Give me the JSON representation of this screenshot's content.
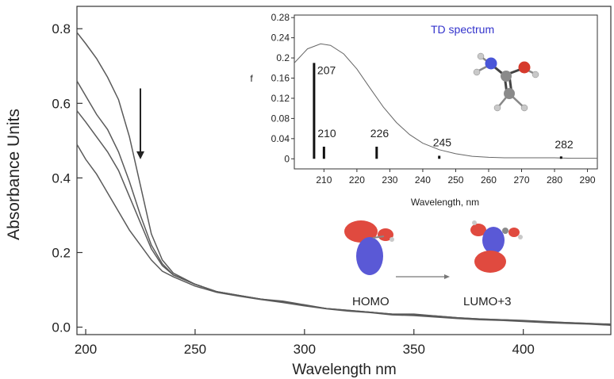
{
  "chart_data": [
    {
      "type": "line",
      "xlabel": "Wavelength nm",
      "ylabel": "Absorbance Units",
      "xlim": [
        196,
        440
      ],
      "ylim": [
        -0.02,
        0.86
      ],
      "x_ticks": [
        200,
        250,
        300,
        350,
        400
      ],
      "y_ticks": [
        0.0,
        0.2,
        0.4,
        0.6,
        0.8
      ],
      "x_tick_labels": [
        "200",
        "250",
        "300",
        "350",
        "400"
      ],
      "y_tick_labels": [
        "0.0",
        "0.2",
        "0.4",
        "0.6",
        "0.8"
      ],
      "arrow_annotation": {
        "x": 225,
        "y_from": 0.64,
        "y_to": 0.45,
        "direction": "down"
      },
      "series": [
        {
          "x": [
            196,
            200,
            205,
            210,
            215,
            220,
            225,
            230,
            235,
            240,
            250,
            260,
            270,
            280,
            290,
            300,
            310,
            320,
            330,
            340,
            350,
            360,
            370,
            380,
            390,
            400,
            410,
            420,
            430,
            440
          ],
          "y": [
            0.79,
            0.76,
            0.72,
            0.67,
            0.61,
            0.51,
            0.38,
            0.25,
            0.18,
            0.145,
            0.115,
            0.095,
            0.085,
            0.075,
            0.07,
            0.06,
            0.05,
            0.045,
            0.04,
            0.035,
            0.035,
            0.03,
            0.025,
            0.022,
            0.02,
            0.018,
            0.015,
            0.012,
            0.01,
            0.008
          ]
        },
        {
          "x": [
            196,
            200,
            205,
            210,
            215,
            220,
            225,
            230,
            235,
            240,
            250,
            260,
            270,
            280,
            290,
            300,
            310,
            320,
            330,
            340,
            350,
            360,
            370,
            380,
            390,
            400,
            410,
            420,
            430,
            440
          ],
          "y": [
            0.66,
            0.62,
            0.57,
            0.53,
            0.47,
            0.39,
            0.3,
            0.22,
            0.17,
            0.14,
            0.115,
            0.095,
            0.085,
            0.075,
            0.068,
            0.058,
            0.05,
            0.045,
            0.04,
            0.035,
            0.033,
            0.03,
            0.025,
            0.022,
            0.02,
            0.017,
            0.014,
            0.012,
            0.01,
            0.007
          ]
        },
        {
          "x": [
            196,
            200,
            205,
            210,
            215,
            220,
            225,
            230,
            235,
            240,
            250,
            260,
            270,
            280,
            290,
            300,
            310,
            320,
            330,
            340,
            350,
            360,
            370,
            380,
            390,
            400,
            410,
            420,
            430,
            440
          ],
          "y": [
            0.58,
            0.55,
            0.51,
            0.47,
            0.42,
            0.35,
            0.28,
            0.21,
            0.165,
            0.14,
            0.115,
            0.095,
            0.085,
            0.075,
            0.068,
            0.058,
            0.05,
            0.044,
            0.04,
            0.034,
            0.032,
            0.028,
            0.024,
            0.021,
            0.019,
            0.016,
            0.013,
            0.011,
            0.009,
            0.006
          ]
        },
        {
          "x": [
            196,
            200,
            205,
            210,
            215,
            220,
            225,
            230,
            235,
            240,
            250,
            260,
            270,
            280,
            290,
            300,
            310,
            320,
            330,
            340,
            350,
            360,
            370,
            380,
            390,
            400,
            410,
            420,
            430,
            440
          ],
          "y": [
            0.49,
            0.45,
            0.41,
            0.36,
            0.31,
            0.26,
            0.22,
            0.18,
            0.15,
            0.135,
            0.11,
            0.093,
            0.083,
            0.074,
            0.066,
            0.057,
            0.049,
            0.043,
            0.039,
            0.033,
            0.031,
            0.027,
            0.023,
            0.02,
            0.018,
            0.015,
            0.012,
            0.01,
            0.008,
            0.005
          ]
        }
      ]
    },
    {
      "type": "bar",
      "title": "TD spectrum",
      "xlabel": "Wavelength, nm",
      "ylabel": "f",
      "xlim": [
        201,
        293
      ],
      "ylim": [
        -0.02,
        0.285
      ],
      "x_ticks": [
        210,
        220,
        230,
        240,
        250,
        260,
        270,
        280,
        290
      ],
      "y_ticks": [
        0,
        0.04,
        0.08,
        0.12,
        0.16,
        0.2,
        0.24,
        0.28
      ],
      "x_tick_labels": [
        "210",
        "220",
        "230",
        "240",
        "250",
        "260",
        "270",
        "280",
        "290"
      ],
      "y_tick_labels": [
        "0",
        "0.04",
        "0.08",
        "0.12",
        "0.16",
        "0.2",
        "0.24",
        "0.28"
      ],
      "bars": [
        {
          "x": 207,
          "f": 0.19,
          "label": "207"
        },
        {
          "x": 210,
          "f": 0.024,
          "label": "210"
        },
        {
          "x": 226,
          "f": 0.024,
          "label": "226"
        },
        {
          "x": 245,
          "f": 0.006,
          "label": "245"
        },
        {
          "x": 282,
          "f": 0.002,
          "label": "282"
        }
      ],
      "envelope": {
        "x": [
          201,
          205,
          209,
          212,
          216,
          220,
          224,
          228,
          232,
          236,
          240,
          245,
          250,
          255,
          260,
          265,
          270,
          275,
          280,
          285,
          290,
          293
        ],
        "y": [
          0.19,
          0.218,
          0.228,
          0.225,
          0.208,
          0.178,
          0.14,
          0.103,
          0.072,
          0.048,
          0.031,
          0.018,
          0.01,
          0.005,
          0.003,
          0.002,
          0.002,
          0.002,
          0.002,
          0.001,
          0.001,
          0.001
        ]
      }
    }
  ],
  "orbitals": {
    "homo_label": "HOMO",
    "lumo_label": "LUMO+3"
  },
  "colors": {
    "line": "#5a5a5a",
    "title": "#3333cc",
    "lobe_red": "#e04a3f",
    "lobe_blue": "#5a59d6"
  }
}
